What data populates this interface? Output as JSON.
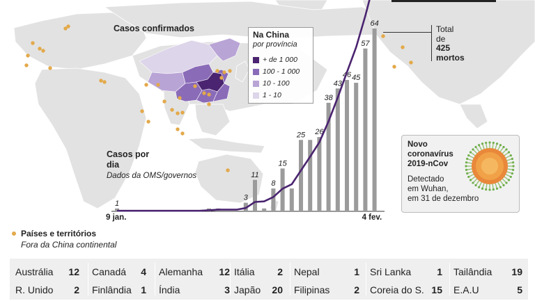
{
  "header": {
    "confirmed_title": "Casos confirmados",
    "daily_title_line1": "Casos por",
    "daily_title_line2": "dia",
    "daily_source": "Dados da OMS/governos"
  },
  "china_legend": {
    "title": "Na China",
    "subtitle": "por província",
    "items": [
      {
        "label": "+ de 1 000",
        "color": "#4a2470"
      },
      {
        "label": "100 - 1 000",
        "color": "#8a6bb8"
      },
      {
        "label": "10 - 100",
        "color": "#b9a4d6"
      },
      {
        "label": "1 - 10",
        "color": "#ddd5e9"
      }
    ]
  },
  "deaths": {
    "line1": "Total",
    "line2": "de",
    "number": "425",
    "line4": "mortos"
  },
  "virus": {
    "title_line1": "Novo",
    "title_line2": "coronavírus",
    "title_line3": "2019-nCov",
    "desc_line1": "Detectado",
    "desc_line2": "em Wuhan,",
    "desc_line3": "em 31 de dezembro"
  },
  "countries_legend": {
    "title": "Países e territórios",
    "subtitle": "Fora da China continental",
    "dot_color": "#e3a94a"
  },
  "chart_data": {
    "type": "bar",
    "x_start_label": "9 jan.",
    "x_end_label": "4 fev.",
    "values": [
      1,
      0,
      0,
      0,
      0,
      0,
      0,
      0,
      0,
      0,
      1,
      1,
      0,
      0,
      3,
      11,
      1,
      8,
      15,
      8,
      25,
      25,
      26,
      38,
      43,
      46,
      45,
      57,
      64
    ],
    "labeled": [
      {
        "index": 0,
        "label": "1"
      },
      {
        "index": 14,
        "label": "3"
      },
      {
        "index": 15,
        "label": "11"
      },
      {
        "index": 17,
        "label": "8"
      },
      {
        "index": 18,
        "label": "15"
      },
      {
        "index": 20,
        "label": "25"
      },
      {
        "index": 22,
        "label": "26"
      },
      {
        "index": 23,
        "label": "38"
      },
      {
        "index": 24,
        "label": "43"
      },
      {
        "index": 25,
        "label": "46"
      },
      {
        "index": 26,
        "label": "45"
      },
      {
        "index": 27,
        "label": "57"
      },
      {
        "index": 28,
        "label": "64"
      }
    ],
    "cumulative": [
      1,
      1,
      1,
      1,
      1,
      1,
      1,
      1,
      1,
      1,
      2,
      3,
      3,
      3,
      6,
      17,
      18,
      26,
      41,
      49,
      74,
      99,
      125,
      163,
      206,
      252,
      297,
      354,
      418
    ],
    "bar_color": "#9b9b9b",
    "line_color": "#4a2470"
  },
  "countries": [
    [
      {
        "name": "Austrália",
        "count": "12"
      },
      {
        "name": "R. Unido",
        "count": "2"
      }
    ],
    [
      {
        "name": "Canadá",
        "count": "4"
      },
      {
        "name": "Finlândia",
        "count": "1"
      }
    ],
    [
      {
        "name": "Alemanha",
        "count": "12"
      },
      {
        "name": "Índia",
        "count": "3"
      }
    ],
    [
      {
        "name": "Itália",
        "count": "2"
      },
      {
        "name": "Japão",
        "count": "20"
      }
    ],
    [
      {
        "name": "Nepal",
        "count": "1"
      },
      {
        "name": "Filipinas",
        "count": "2"
      }
    ],
    [
      {
        "name": "Sri Lanka",
        "count": "1"
      },
      {
        "name": "Coreia do S.",
        "count": "15"
      }
    ],
    [
      {
        "name": "Tailândia",
        "count": "19"
      },
      {
        "name": "E.A.U",
        "count": "5"
      }
    ]
  ]
}
